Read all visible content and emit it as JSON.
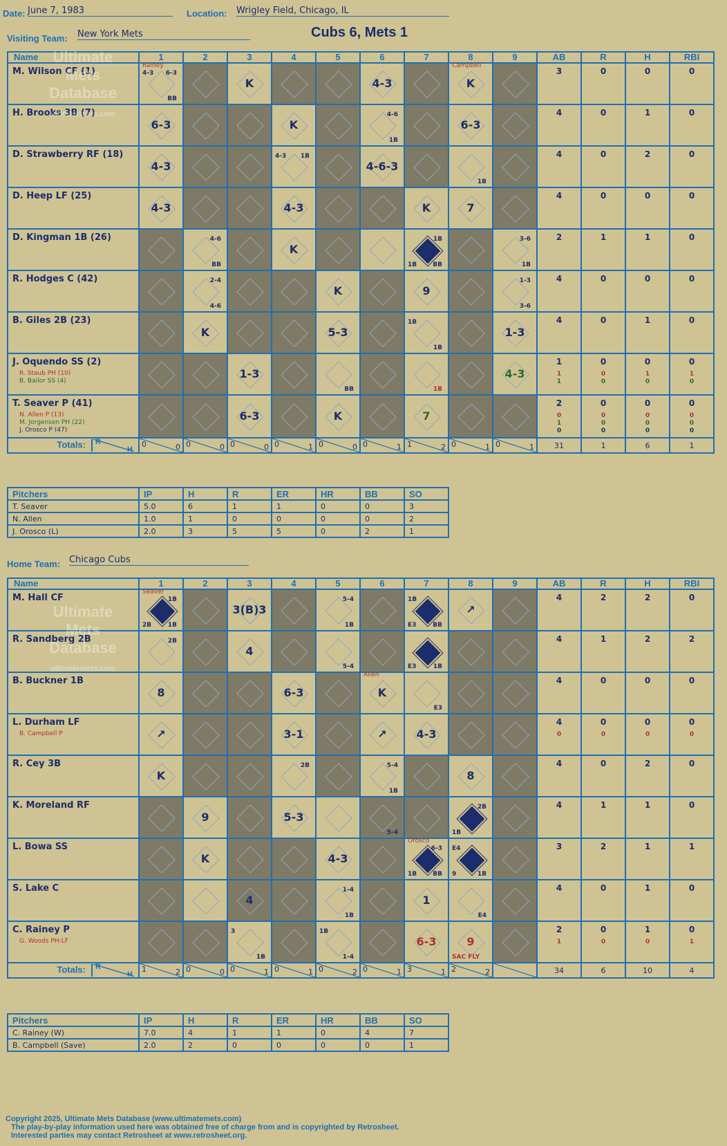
{
  "header": {
    "date_label": "Date:",
    "date": "June 7, 1983",
    "location_label": "Location:",
    "location": "Wrigley Field, Chicago, IL",
    "title": "Cubs 6, Mets 1"
  },
  "visiting": {
    "team_label": "Visiting Team:",
    "team": "New York Mets",
    "columns": [
      "Name",
      "1",
      "2",
      "3",
      "4",
      "5",
      "6",
      "7",
      "8",
      "9",
      "AB",
      "R",
      "H",
      "RBI"
    ],
    "batters": [
      {
        "name": "M. Wilson CF (1)",
        "subs": [],
        "stats": [
          "3",
          "0",
          "0",
          "0"
        ],
        "substats": []
      },
      {
        "name": "H. Brooks 3B (7)",
        "subs": [],
        "stats": [
          "4",
          "0",
          "1",
          "0"
        ],
        "substats": []
      },
      {
        "name": "D. Strawberry RF (18)",
        "subs": [],
        "stats": [
          "4",
          "0",
          "2",
          "0"
        ],
        "substats": []
      },
      {
        "name": "D. Heep LF (25)",
        "subs": [],
        "stats": [
          "4",
          "0",
          "0",
          "0"
        ],
        "substats": []
      },
      {
        "name": "D. Kingman 1B (26)",
        "subs": [],
        "stats": [
          "2",
          "1",
          "1",
          "0"
        ],
        "substats": []
      },
      {
        "name": "R. Hodges C (42)",
        "subs": [],
        "stats": [
          "4",
          "0",
          "0",
          "0"
        ],
        "substats": []
      },
      {
        "name": "B. Giles 2B (23)",
        "subs": [],
        "stats": [
          "4",
          "0",
          "1",
          "0"
        ],
        "substats": []
      },
      {
        "name": "J. Oquendo SS (2)",
        "subs": [
          {
            "t": "R. Staub PH (10)",
            "c": "red"
          },
          {
            "t": "B. Bailor SS (4)",
            "c": "green"
          }
        ],
        "stats": [
          "1",
          "0",
          "0",
          "0"
        ],
        "substats": [
          [
            "1",
            "0",
            "1",
            "1"
          ],
          [
            "1",
            "0",
            "0",
            "0"
          ]
        ]
      },
      {
        "name": "T. Seaver P (41)",
        "subs": [
          {
            "t": "N. Allen P (13)",
            "c": "red"
          },
          {
            "t": "M. Jorgensen PH (22)",
            "c": "green"
          },
          {
            "t": "J. Orosco P (47)",
            "c": "blue"
          }
        ],
        "stats": [
          "2",
          "0",
          "0",
          "0"
        ],
        "substats": [
          [
            "0",
            "0",
            "0",
            "0"
          ],
          [
            "1",
            "0",
            "0",
            "0"
          ],
          [
            "0",
            "0",
            "0",
            "0"
          ]
        ]
      }
    ],
    "dark": [
      [
        2,
        4,
        5,
        7,
        9
      ],
      [
        2,
        3,
        5,
        7,
        9
      ],
      [
        2,
        3,
        5,
        7,
        9
      ],
      [
        2,
        3,
        5,
        6,
        9
      ],
      [
        1,
        3,
        5,
        8
      ],
      [
        1,
        3,
        4,
        6,
        8
      ],
      [
        1,
        3,
        4,
        6,
        8
      ],
      [
        1,
        2,
        4,
        6,
        8
      ],
      [
        1,
        2,
        4,
        6,
        8,
        9
      ]
    ],
    "cells": {
      "0-1": {
        "t": "",
        "run": false,
        "note": "Rainey",
        "notec": "red",
        "ul": "4-3",
        "ur": "6-3",
        "lr": "BB"
      },
      "0-3": {
        "t": "K"
      },
      "0-6": {
        "t": "4-3"
      },
      "0-8": {
        "t": "K",
        "note": "Campbell",
        "notec": "red"
      },
      "1-1": {
        "t": "6-3"
      },
      "1-4": {
        "t": "K"
      },
      "1-6": {
        "t": "",
        "ur": "4-6",
        "lr": "1B"
      },
      "1-8": {
        "t": "6-3"
      },
      "2-1": {
        "t": "4-3"
      },
      "2-4": {
        "t": "",
        "ul": "4-3",
        "ur": "1B"
      },
      "2-6": {
        "t": "4-6-3"
      },
      "2-8": {
        "t": "",
        "lr": "1B"
      },
      "3-1": {
        "t": "4-3"
      },
      "3-4": {
        "t": "4-3"
      },
      "3-7": {
        "t": "K"
      },
      "3-8": {
        "t": "7"
      },
      "4-2": {
        "t": "",
        "ur": "4-6",
        "lr": "BB"
      },
      "4-4": {
        "t": "K"
      },
      "4-7": {
        "t": "",
        "run": true,
        "ur": "1B",
        "ll": "1B",
        "lr": "BB"
      },
      "4-9": {
        "t": "",
        "ur": "3-6",
        "lr": "1B"
      },
      "5-2": {
        "t": "",
        "ur": "2-4",
        "lr": "4-6"
      },
      "5-5": {
        "t": "K"
      },
      "5-7": {
        "t": "9"
      },
      "5-9": {
        "t": "",
        "ur": "1-3",
        "lr": "3-6"
      },
      "6-2": {
        "t": "K"
      },
      "6-5": {
        "t": "5-3"
      },
      "6-7": {
        "t": "",
        "ul": "1B",
        "lr": "1B"
      },
      "6-9": {
        "t": "1-3"
      },
      "7-3": {
        "t": "1-3"
      },
      "7-5": {
        "t": "",
        "lr": "BB"
      },
      "7-7": {
        "t": "",
        "lr": "1B",
        "lrc": "red"
      },
      "7-9": {
        "t": "4-3",
        "c": "green"
      },
      "8-3": {
        "t": "6-3"
      },
      "8-5": {
        "t": "K"
      },
      "8-7": {
        "t": "7",
        "c": "green"
      }
    },
    "totals_label": "Totals:",
    "rh_r": "R",
    "rh_h": "H",
    "totals": [
      [
        "0",
        "0"
      ],
      [
        "0",
        "0"
      ],
      [
        "0",
        "0"
      ],
      [
        "0",
        "1"
      ],
      [
        "0",
        "0"
      ],
      [
        "0",
        "1"
      ],
      [
        "1",
        "2"
      ],
      [
        "0",
        "1"
      ],
      [
        "0",
        "1"
      ]
    ],
    "totals_stats": [
      "31",
      "1",
      "6",
      "1"
    ],
    "pitch_columns": [
      "Pitchers",
      "IP",
      "H",
      "R",
      "ER",
      "HR",
      "BB",
      "SO"
    ],
    "pitchers": [
      [
        "T. Seaver",
        "5.0",
        "6",
        "1",
        "1",
        "0",
        "0",
        "3"
      ],
      [
        "N. Allen",
        "1.0",
        "1",
        "0",
        "0",
        "0",
        "0",
        "2"
      ],
      [
        "J. Orosco (L)",
        "2.0",
        "3",
        "5",
        "5",
        "0",
        "2",
        "1"
      ]
    ]
  },
  "home": {
    "team_label": "Home Team:",
    "team": "Chicago Cubs",
    "batters": [
      {
        "name": "M. Hall CF",
        "subs": [],
        "stats": [
          "4",
          "2",
          "2",
          "0"
        ],
        "substats": []
      },
      {
        "name": "R. Sandberg 2B",
        "subs": [],
        "stats": [
          "4",
          "1",
          "2",
          "2"
        ],
        "substats": []
      },
      {
        "name": "B. Buckner 1B",
        "subs": [],
        "stats": [
          "4",
          "0",
          "0",
          "0"
        ],
        "substats": []
      },
      {
        "name": "L. Durham LF",
        "subs": [
          {
            "t": "B. Campbell P",
            "c": "red"
          }
        ],
        "stats": [
          "4",
          "0",
          "0",
          "0"
        ],
        "substats": [
          [
            "0",
            "0",
            "0",
            "0"
          ]
        ]
      },
      {
        "name": "R. Cey 3B",
        "subs": [],
        "stats": [
          "4",
          "0",
          "2",
          "0"
        ],
        "substats": []
      },
      {
        "name": "K. Moreland RF",
        "subs": [],
        "stats": [
          "4",
          "1",
          "1",
          "0"
        ],
        "substats": []
      },
      {
        "name": "L. Bowa SS",
        "subs": [],
        "stats": [
          "3",
          "2",
          "1",
          "1"
        ],
        "substats": []
      },
      {
        "name": "S. Lake C",
        "subs": [],
        "stats": [
          "4",
          "0",
          "1",
          "0"
        ],
        "substats": []
      },
      {
        "name": "C. Rainey P",
        "subs": [
          {
            "t": "G. Woods PH-LF",
            "c": "red"
          }
        ],
        "stats": [
          "2",
          "0",
          "1",
          "0"
        ],
        "substats": [
          [
            "1",
            "0",
            "0",
            "1"
          ]
        ]
      }
    ],
    "dark": [
      [
        2,
        4,
        6,
        9
      ],
      [
        2,
        4,
        6,
        8,
        9
      ],
      [
        2,
        3,
        5,
        8,
        9
      ],
      [
        2,
        3,
        5,
        8,
        9
      ],
      [
        2,
        3,
        5,
        7,
        9
      ],
      [
        1,
        3,
        6,
        7,
        9
      ],
      [
        1,
        3,
        4,
        6,
        9
      ],
      [
        1,
        3,
        4,
        6,
        9
      ],
      [
        1,
        2,
        4,
        6,
        9
      ]
    ],
    "cells": {
      "0-1": {
        "t": "",
        "run": true,
        "note": "Seaver",
        "notec": "red",
        "ur": "1B",
        "ll": "2B",
        "lr": "1B"
      },
      "0-3": {
        "t": "3(B)3"
      },
      "0-5": {
        "t": "",
        "ur": "5-4",
        "lr": "1B"
      },
      "0-7": {
        "t": "",
        "run": true,
        "ul": "1B",
        "ll": "E3",
        "lr": "BB"
      },
      "0-8": {
        "t": "↗"
      },
      "1-1": {
        "t": "",
        "ur": "2B"
      },
      "1-3": {
        "t": "4"
      },
      "1-5": {
        "t": "",
        "lr": "5-4"
      },
      "1-7": {
        "t": "",
        "run": true,
        "ll": "E3",
        "lr": "1B"
      },
      "2-1": {
        "t": "8"
      },
      "2-4": {
        "t": "6-3"
      },
      "2-6": {
        "t": "K",
        "note": "Allen",
        "notec": "red"
      },
      "2-7": {
        "t": "",
        "lr": "E3"
      },
      "3-1": {
        "t": "↗"
      },
      "3-4": {
        "t": "3-1"
      },
      "3-6": {
        "t": "↗"
      },
      "3-7": {
        "t": "4-3"
      },
      "4-1": {
        "t": "K"
      },
      "4-4": {
        "t": "",
        "ur": "2B"
      },
      "4-6": {
        "t": "",
        "ur": "5-4",
        "lr": "1B"
      },
      "4-8": {
        "t": "8"
      },
      "5-2": {
        "t": "9"
      },
      "5-4": {
        "t": "5-3"
      },
      "5-6": {
        "t": "",
        "lr": "5-4"
      },
      "5-8": {
        "t": "",
        "run": true,
        "ur": "2B",
        "ll": "1B"
      },
      "6-2": {
        "t": "K"
      },
      "6-5": {
        "t": "4-3"
      },
      "6-7": {
        "t": "",
        "run": true,
        "note": "Orosco",
        "notec": "red",
        "ur": "6-3",
        "ll": "1B",
        "lr": "BB"
      },
      "6-8": {
        "t": "",
        "run": true,
        "ul": "E4",
        "ll": "9",
        "lr": "1B"
      },
      "7-3": {
        "t": "4"
      },
      "7-5": {
        "t": "",
        "ur": "1-4",
        "lr": "1B"
      },
      "7-7": {
        "t": "1"
      },
      "7-8": {
        "t": "",
        "lr": "E4"
      },
      "8-3": {
        "t": "",
        "ul": "3",
        "lr": "1B"
      },
      "8-5": {
        "t": "",
        "ul": "1B",
        "lr": "1-4"
      },
      "8-7": {
        "t": "6-3",
        "c": "red"
      },
      "8-8": {
        "t": "9",
        "c": "red",
        "ll": "SAC FLY",
        "llc": "red"
      }
    },
    "totals": [
      [
        "1",
        "2"
      ],
      [
        "0",
        "0"
      ],
      [
        "0",
        "1"
      ],
      [
        "0",
        "1"
      ],
      [
        "0",
        "2"
      ],
      [
        "0",
        "1"
      ],
      [
        "3",
        "1"
      ],
      [
        "2",
        "2"
      ],
      [
        "",
        ""
      ]
    ],
    "totals_stats": [
      "34",
      "6",
      "10",
      "4"
    ],
    "pitchers": [
      [
        "C. Rainey (W)",
        "7.0",
        "4",
        "1",
        "1",
        "0",
        "4",
        "7"
      ],
      [
        "B. Campbell (Save)",
        "2.0",
        "2",
        "0",
        "0",
        "0",
        "0",
        "1"
      ]
    ]
  },
  "watermark": "Ultimate Mets Database",
  "watermark_sub": "ultimatemets.com",
  "footer": {
    "l1": "Copyright 2025, Ultimate Mets Database (www.ultimatemets.com)",
    "l2": "The play-by-play information used here was obtained free of charge from and is copyrighted by Retrosheet.",
    "l3": "Interested parties may contact Retrosheet at www.retrosheet.org."
  },
  "colors": {
    "bg": "#cfc394",
    "grid": "#1f6fb2",
    "dark": "#7e7a66",
    "ink": "#1c2d6b"
  }
}
